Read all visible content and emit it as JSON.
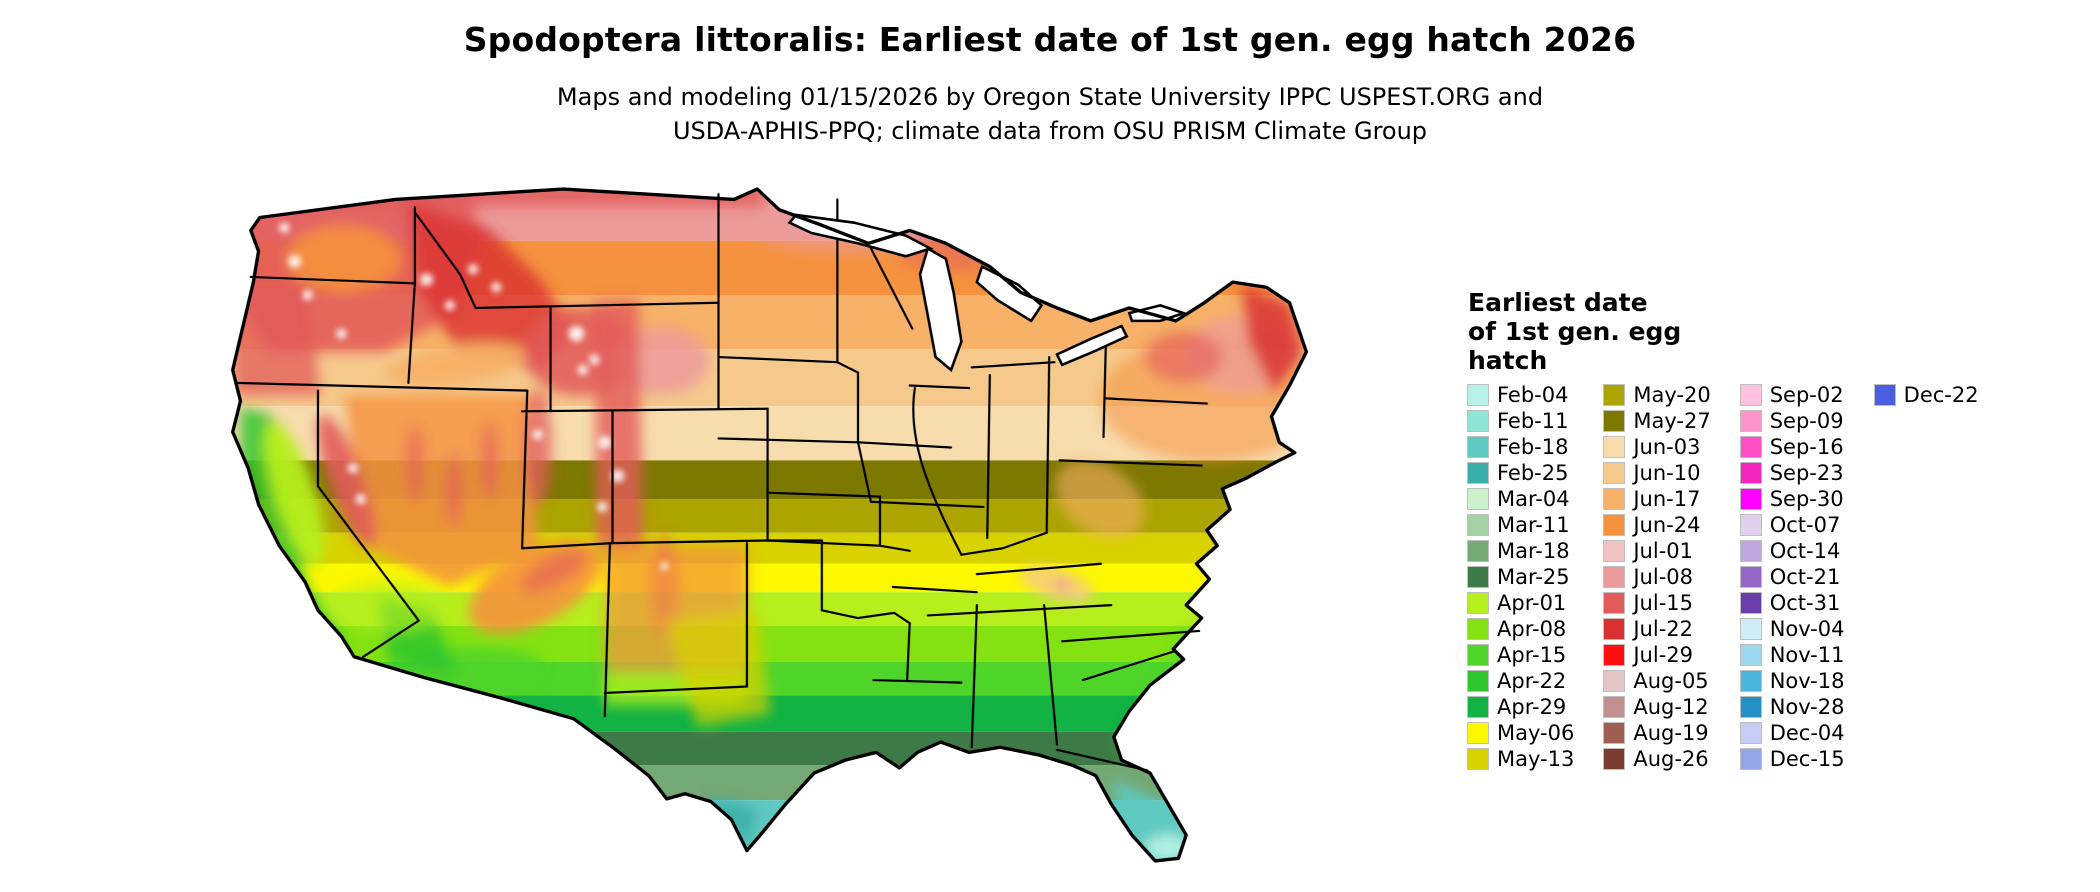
{
  "title": "Spodoptera littoralis: Earliest date of 1st gen. egg hatch 2026",
  "subtitle": {
    "line1": "Maps and modeling 01/15/2026 by Oregon State University IPPC USPEST.ORG and",
    "line2": "USDA-APHIS-PPQ; climate data from OSU PRISM Climate Group"
  },
  "legend": {
    "title_lines": [
      "Earliest date",
      "of 1st gen. egg",
      "hatch"
    ],
    "columns": [
      [
        {
          "label": "Feb-04",
          "color": "#b8f2e6"
        },
        {
          "label": "Feb-11",
          "color": "#8fe5d3"
        },
        {
          "label": "Feb-18",
          "color": "#5fc9c0"
        },
        {
          "label": "Feb-25",
          "color": "#3aafa9"
        },
        {
          "label": "Mar-04",
          "color": "#ccf2cc"
        },
        {
          "label": "Mar-11",
          "color": "#a5d2a5"
        },
        {
          "label": "Mar-18",
          "color": "#74a874"
        },
        {
          "label": "Mar-25",
          "color": "#3d7a47"
        },
        {
          "label": "Apr-01",
          "color": "#b6ef1c"
        },
        {
          "label": "Apr-08",
          "color": "#84e212"
        },
        {
          "label": "Apr-15",
          "color": "#4fd42a"
        },
        {
          "label": "Apr-22",
          "color": "#2ec52e"
        },
        {
          "label": "Apr-29",
          "color": "#12b244"
        },
        {
          "label": "May-06",
          "color": "#fbf800"
        },
        {
          "label": "May-13",
          "color": "#d8d200"
        }
      ],
      [
        {
          "label": "May-20",
          "color": "#aca400"
        },
        {
          "label": "May-27",
          "color": "#7d7800"
        },
        {
          "label": "Jun-03",
          "color": "#f7dcae"
        },
        {
          "label": "Jun-10",
          "color": "#f5c98c"
        },
        {
          "label": "Jun-17",
          "color": "#f7b168"
        },
        {
          "label": "Jun-24",
          "color": "#f5923f"
        },
        {
          "label": "Jul-01",
          "color": "#f2c3c3"
        },
        {
          "label": "Jul-08",
          "color": "#ec9b9b"
        },
        {
          "label": "Jul-15",
          "color": "#e25b5b"
        },
        {
          "label": "Jul-22",
          "color": "#d93131"
        },
        {
          "label": "Jul-29",
          "color": "#ff0f0f"
        },
        {
          "label": "Aug-05",
          "color": "#e2c5c5"
        },
        {
          "label": "Aug-12",
          "color": "#c29090"
        },
        {
          "label": "Aug-19",
          "color": "#9e5e50"
        },
        {
          "label": "Aug-26",
          "color": "#7a3c2e"
        }
      ],
      [
        {
          "label": "Sep-02",
          "color": "#ffc2de"
        },
        {
          "label": "Sep-09",
          "color": "#ff93cb"
        },
        {
          "label": "Sep-16",
          "color": "#ff4fc6"
        },
        {
          "label": "Sep-23",
          "color": "#f226bd"
        },
        {
          "label": "Sep-30",
          "color": "#ff00ff"
        },
        {
          "label": "Oct-07",
          "color": "#ded2ee"
        },
        {
          "label": "Oct-14",
          "color": "#bda7dd"
        },
        {
          "label": "Oct-21",
          "color": "#9468c6"
        },
        {
          "label": "Oct-31",
          "color": "#6a3ea8"
        },
        {
          "label": "Nov-04",
          "color": "#cfeef7"
        },
        {
          "label": "Nov-11",
          "color": "#9cd9ee"
        },
        {
          "label": "Nov-18",
          "color": "#4cb6dc"
        },
        {
          "label": "Nov-28",
          "color": "#2590c5"
        },
        {
          "label": "Dec-04",
          "color": "#c5cef2"
        },
        {
          "label": "Dec-15",
          "color": "#95a5e8"
        }
      ],
      [
        {
          "label": "Dec-22",
          "color": "#4a5fe0"
        }
      ]
    ]
  }
}
